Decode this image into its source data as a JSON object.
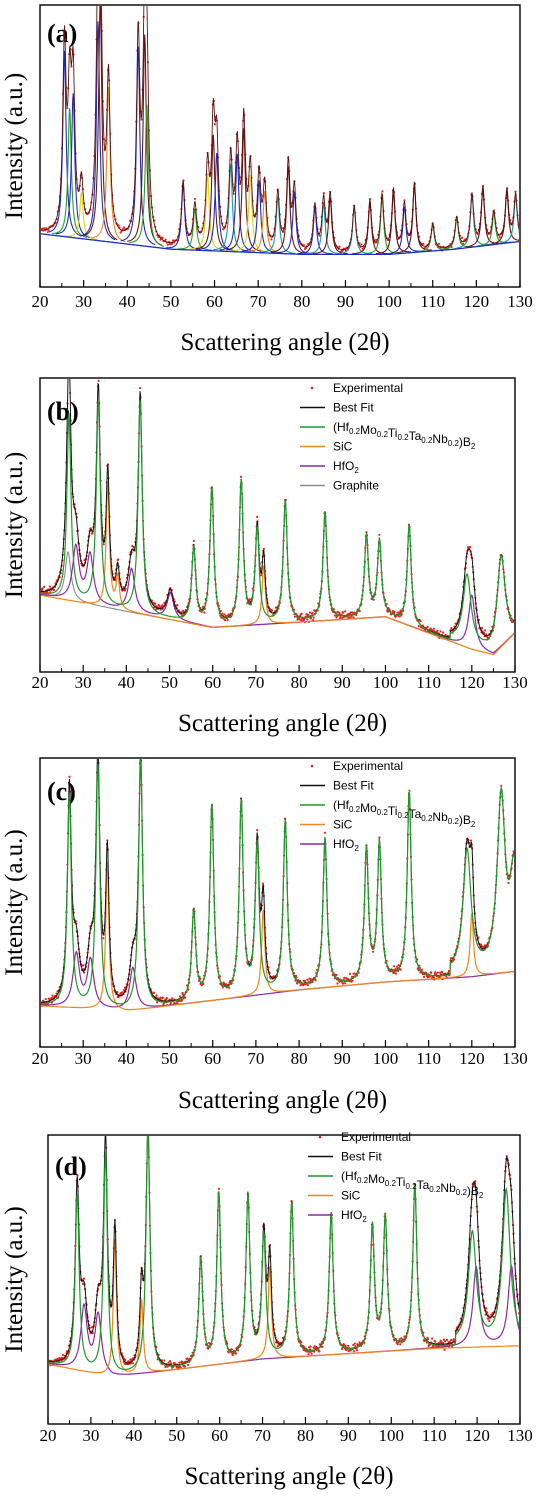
{
  "figure": {
    "colors": {
      "experimental": "#e8231e",
      "best_fit": "#111111",
      "boride": "#1f9a2a",
      "sic": "#f0861c",
      "hfo2": "#8a2aa6",
      "graphite": "#8c8c8c",
      "axis": "#000000"
    }
  },
  "chart_data": [
    {
      "panel": "(a)",
      "type": "line",
      "xlabel": "Scattering angle (2θ)",
      "ylabel": "Intensity (a.u.)",
      "xlim": [
        20,
        130
      ],
      "ylim": [
        0,
        1
      ],
      "xticks": [
        "20",
        "30",
        "40",
        "50",
        "60",
        "70",
        "80",
        "90",
        "100",
        "110",
        "120",
        "130"
      ],
      "legend": [],
      "background": [
        [
          20,
          0.16
        ],
        [
          50,
          0.1
        ],
        [
          80,
          0.08
        ],
        [
          100,
          0.08
        ],
        [
          115,
          0.1
        ],
        [
          130,
          0.13
        ]
      ],
      "peaks": [
        {
          "x": 25.6,
          "h": 0.72,
          "color": "blue"
        },
        {
          "x": 26.8,
          "h": 0.5,
          "color": "green"
        },
        {
          "x": 27.6,
          "h": 0.56,
          "color": "blue"
        },
        {
          "x": 29.5,
          "h": 0.18,
          "color": "yellow"
        },
        {
          "x": 33.3,
          "h": 0.85,
          "color": "blue"
        },
        {
          "x": 33.8,
          "h": 0.93,
          "color": "darkred"
        },
        {
          "x": 35.7,
          "h": 0.6,
          "color": "orange"
        },
        {
          "x": 42.5,
          "h": 0.77,
          "color": "blue"
        },
        {
          "x": 44.0,
          "h": 0.82,
          "color": "darkred"
        },
        {
          "x": 44.5,
          "h": 0.55,
          "color": "green"
        },
        {
          "x": 52.8,
          "h": 0.25,
          "color": "blue"
        },
        {
          "x": 55.5,
          "h": 0.16,
          "color": "green"
        },
        {
          "x": 58.4,
          "h": 0.3,
          "color": "yellow"
        },
        {
          "x": 59.7,
          "h": 0.45,
          "color": "darkred"
        },
        {
          "x": 60.5,
          "h": 0.38,
          "color": "blue"
        },
        {
          "x": 63.7,
          "h": 0.34,
          "color": "teal"
        },
        {
          "x": 65.2,
          "h": 0.38,
          "color": "blue"
        },
        {
          "x": 66.7,
          "h": 0.48,
          "color": "darkred"
        },
        {
          "x": 68.2,
          "h": 0.3,
          "color": "yellow"
        },
        {
          "x": 70.2,
          "h": 0.28,
          "color": "blue"
        },
        {
          "x": 71.5,
          "h": 0.24,
          "color": "orange"
        },
        {
          "x": 74.5,
          "h": 0.22,
          "color": "teal"
        },
        {
          "x": 76.9,
          "h": 0.34,
          "color": "darkred"
        },
        {
          "x": 78.3,
          "h": 0.24,
          "color": "blue"
        },
        {
          "x": 83.0,
          "h": 0.18,
          "color": "blue"
        },
        {
          "x": 85.0,
          "h": 0.2,
          "color": "teal"
        },
        {
          "x": 86.5,
          "h": 0.22,
          "color": "darkred"
        },
        {
          "x": 92.0,
          "h": 0.18,
          "color": "teal"
        },
        {
          "x": 95.6,
          "h": 0.2,
          "color": "darkred"
        },
        {
          "x": 98.4,
          "h": 0.22,
          "color": "green"
        },
        {
          "x": 101.0,
          "h": 0.24,
          "color": "darkred"
        },
        {
          "x": 103.5,
          "h": 0.18,
          "color": "blue"
        },
        {
          "x": 105.8,
          "h": 0.26,
          "color": "darkred"
        },
        {
          "x": 110.0,
          "h": 0.1,
          "color": "green"
        },
        {
          "x": 115.5,
          "h": 0.12,
          "color": "green"
        },
        {
          "x": 119.0,
          "h": 0.2,
          "color": "teal"
        },
        {
          "x": 121.5,
          "h": 0.22,
          "color": "darkred"
        },
        {
          "x": 124.0,
          "h": 0.12,
          "color": "green"
        },
        {
          "x": 127.0,
          "h": 0.2,
          "color": "darkred"
        },
        {
          "x": 129.0,
          "h": 0.18,
          "color": "teal"
        }
      ]
    },
    {
      "panel": "(b)",
      "type": "line",
      "xlabel": "Scattering angle (2θ)",
      "ylabel": "Intensity (a.u.)",
      "xlim": [
        20,
        130
      ],
      "ylim": [
        0,
        1
      ],
      "xticks": [
        "20",
        "30",
        "40",
        "50",
        "60",
        "70",
        "80",
        "90",
        "100",
        "110",
        "120",
        "130"
      ],
      "legend": [
        {
          "key": "experimental",
          "label": "Experimental",
          "sub": []
        },
        {
          "key": "best_fit",
          "label": "Best Fit",
          "sub": []
        },
        {
          "key": "boride",
          "label": "(Hf0.2Mo0.2Ti0.2Ta0.2Nb0.2)B2",
          "sub": [
            [
              "(Hf",
              ""
            ],
            [
              "0.2",
              "sub"
            ],
            [
              "Mo",
              ""
            ],
            [
              "0.2",
              "sub"
            ],
            [
              "Ti",
              ""
            ],
            [
              "0.2",
              "sub"
            ],
            [
              "Ta",
              ""
            ],
            [
              "0.2",
              "sub"
            ],
            [
              "Nb",
              ""
            ],
            [
              "0.2",
              "sub"
            ],
            [
              ")B",
              ""
            ],
            [
              "2",
              "sub"
            ]
          ]
        },
        {
          "key": "sic",
          "label": "SiC",
          "sub": []
        },
        {
          "key": "hfo2",
          "label": "HfO2",
          "sub": [
            [
              "HfO",
              ""
            ],
            [
              "2",
              "sub"
            ]
          ]
        },
        {
          "key": "graphite",
          "label": "Graphite",
          "sub": []
        }
      ],
      "background": [
        [
          20,
          0.24
        ],
        [
          40,
          0.18
        ],
        [
          60,
          0.12
        ],
        [
          80,
          0.14
        ],
        [
          100,
          0.16
        ],
        [
          110,
          0.1
        ],
        [
          120,
          0.04
        ],
        [
          125,
          0.02
        ],
        [
          130,
          0.1
        ]
      ],
      "boride_peaks": [
        [
          26.7,
          0.69
        ],
        [
          33.5,
          0.76
        ],
        [
          43.2,
          0.79
        ],
        [
          55.6,
          0.28
        ],
        [
          59.8,
          0.51
        ],
        [
          66.6,
          0.53
        ],
        [
          70.3,
          0.35
        ],
        [
          76.8,
          0.45
        ],
        [
          86.0,
          0.4
        ],
        [
          95.6,
          0.3
        ],
        [
          98.6,
          0.28
        ],
        [
          105.5,
          0.37
        ],
        [
          118.9,
          0.26
        ],
        [
          126.8,
          0.33
        ]
      ],
      "sic_peaks": [
        [
          35.7,
          0.46
        ],
        [
          71.8,
          0.22
        ],
        [
          38.0,
          0.12
        ]
      ],
      "hfo2_peaks": [
        [
          28.3,
          0.2
        ],
        [
          31.6,
          0.18
        ],
        [
          41.2,
          0.16
        ],
        [
          50.2,
          0.1
        ],
        [
          120.0,
          0.2
        ]
      ],
      "graphite_peaks": [
        [
          26.5,
          0.18
        ]
      ]
    },
    {
      "panel": "(c)",
      "type": "line",
      "xlabel": "Scattering angle (2θ)",
      "ylabel": "Intensity (a.u.)",
      "xlim": [
        20,
        130
      ],
      "ylim": [
        0,
        1
      ],
      "xticks": [
        "20",
        "30",
        "40",
        "50",
        "60",
        "70",
        "80",
        "90",
        "100",
        "110",
        "120",
        "130"
      ],
      "legend": [
        {
          "key": "experimental",
          "label": "Experimental",
          "sub": []
        },
        {
          "key": "best_fit",
          "label": "Best Fit",
          "sub": []
        },
        {
          "key": "boride",
          "label": "(Hf0.2Mo0.2Ti0.2Ta0.2Nb0.2)B2",
          "sub": [
            [
              "(Hf",
              ""
            ],
            [
              "0.2",
              "sub"
            ],
            [
              "Mo",
              ""
            ],
            [
              "0.2",
              "sub"
            ],
            [
              "Ti",
              ""
            ],
            [
              "0.2",
              "sub"
            ],
            [
              "Ta",
              ""
            ],
            [
              "0.2",
              "sub"
            ],
            [
              "Nb",
              ""
            ],
            [
              "0.2",
              "sub"
            ],
            [
              ")B",
              ""
            ],
            [
              "2",
              "sub"
            ]
          ]
        },
        {
          "key": "sic",
          "label": "SiC",
          "sub": []
        },
        {
          "key": "hfo2",
          "label": "HfO2",
          "sub": [
            [
              "HfO",
              ""
            ],
            [
              "2",
              "sub"
            ]
          ]
        }
      ],
      "background": [
        [
          20,
          0.11
        ],
        [
          40,
          0.09
        ],
        [
          60,
          0.13
        ],
        [
          80,
          0.17
        ],
        [
          100,
          0.2
        ],
        [
          120,
          0.22
        ],
        [
          130,
          0.24
        ]
      ],
      "boride_peaks": [
        [
          26.8,
          0.8
        ],
        [
          33.4,
          0.92
        ],
        [
          43.3,
          0.94
        ],
        [
          55.6,
          0.34
        ],
        [
          59.8,
          0.73
        ],
        [
          66.6,
          0.73
        ],
        [
          70.3,
          0.56
        ],
        [
          76.8,
          0.64
        ],
        [
          86.0,
          0.56
        ],
        [
          95.6,
          0.5
        ],
        [
          98.6,
          0.52
        ],
        [
          105.5,
          0.71
        ],
        [
          118.9,
          0.46
        ],
        [
          126.8,
          0.64
        ],
        [
          129.8,
          0.36
        ]
      ],
      "sic_peaks": [
        [
          35.6,
          0.56
        ],
        [
          71.7,
          0.32
        ],
        [
          120.0,
          0.24
        ]
      ],
      "hfo2_peaks": [
        [
          28.4,
          0.2
        ],
        [
          31.7,
          0.18
        ],
        [
          41.5,
          0.16
        ]
      ],
      "graphite_peaks": []
    },
    {
      "panel": "(d)",
      "type": "line",
      "xlabel": "Scattering angle (2θ)",
      "ylabel": "Intensity (a.u.)",
      "xlim": [
        20,
        130
      ],
      "ylim": [
        0,
        1
      ],
      "xticks": [
        "20",
        "30",
        "40",
        "50",
        "60",
        "70",
        "80",
        "90",
        "100",
        "110",
        "120",
        "130"
      ],
      "legend": [
        {
          "key": "experimental",
          "label": "Experimental",
          "sub": []
        },
        {
          "key": "best_fit",
          "label": "Best Fit",
          "sub": []
        },
        {
          "key": "boride",
          "label": "(Hf0.2Mo0.2Ti0.2Ta0.2Nb0.2)B2",
          "sub": [
            [
              "(Hf",
              ""
            ],
            [
              "0.2",
              "sub"
            ],
            [
              "Mo",
              ""
            ],
            [
              "0.2",
              "sub"
            ],
            [
              "Ti",
              ""
            ],
            [
              "0.2",
              "sub"
            ],
            [
              "Ta",
              ""
            ],
            [
              "0.2",
              "sub"
            ],
            [
              "Nb",
              ""
            ],
            [
              "0.2",
              "sub"
            ],
            [
              ")B",
              ""
            ],
            [
              "2",
              "sub"
            ]
          ]
        },
        {
          "key": "sic",
          "label": "SiC",
          "sub": []
        },
        {
          "key": "hfo2",
          "label": "HfO2",
          "sub": [
            [
              "HfO",
              ""
            ],
            [
              "2",
              "sub"
            ]
          ]
        }
      ],
      "background": [
        [
          20,
          0.18
        ],
        [
          35,
          0.13
        ],
        [
          50,
          0.16
        ],
        [
          70,
          0.2
        ],
        [
          90,
          0.22
        ],
        [
          110,
          0.24
        ],
        [
          130,
          0.25
        ]
      ],
      "boride_peaks": [
        [
          26.8,
          0.66
        ],
        [
          33.4,
          0.84
        ],
        [
          43.3,
          0.92
        ],
        [
          55.6,
          0.4
        ],
        [
          59.8,
          0.64
        ],
        [
          66.6,
          0.62
        ],
        [
          70.3,
          0.46
        ],
        [
          76.8,
          0.58
        ],
        [
          86.0,
          0.53
        ],
        [
          95.6,
          0.47
        ],
        [
          98.6,
          0.5
        ],
        [
          105.5,
          0.62
        ],
        [
          118.9,
          0.42
        ],
        [
          126.8,
          0.58
        ]
      ],
      "sic_peaks": [
        [
          35.6,
          0.52
        ],
        [
          71.7,
          0.35
        ],
        [
          41.8,
          0.28
        ]
      ],
      "hfo2_peaks": [
        [
          28.4,
          0.24
        ],
        [
          31.7,
          0.22
        ],
        [
          119.8,
          0.3
        ],
        [
          128.0,
          0.3
        ]
      ],
      "graphite_peaks": []
    }
  ]
}
